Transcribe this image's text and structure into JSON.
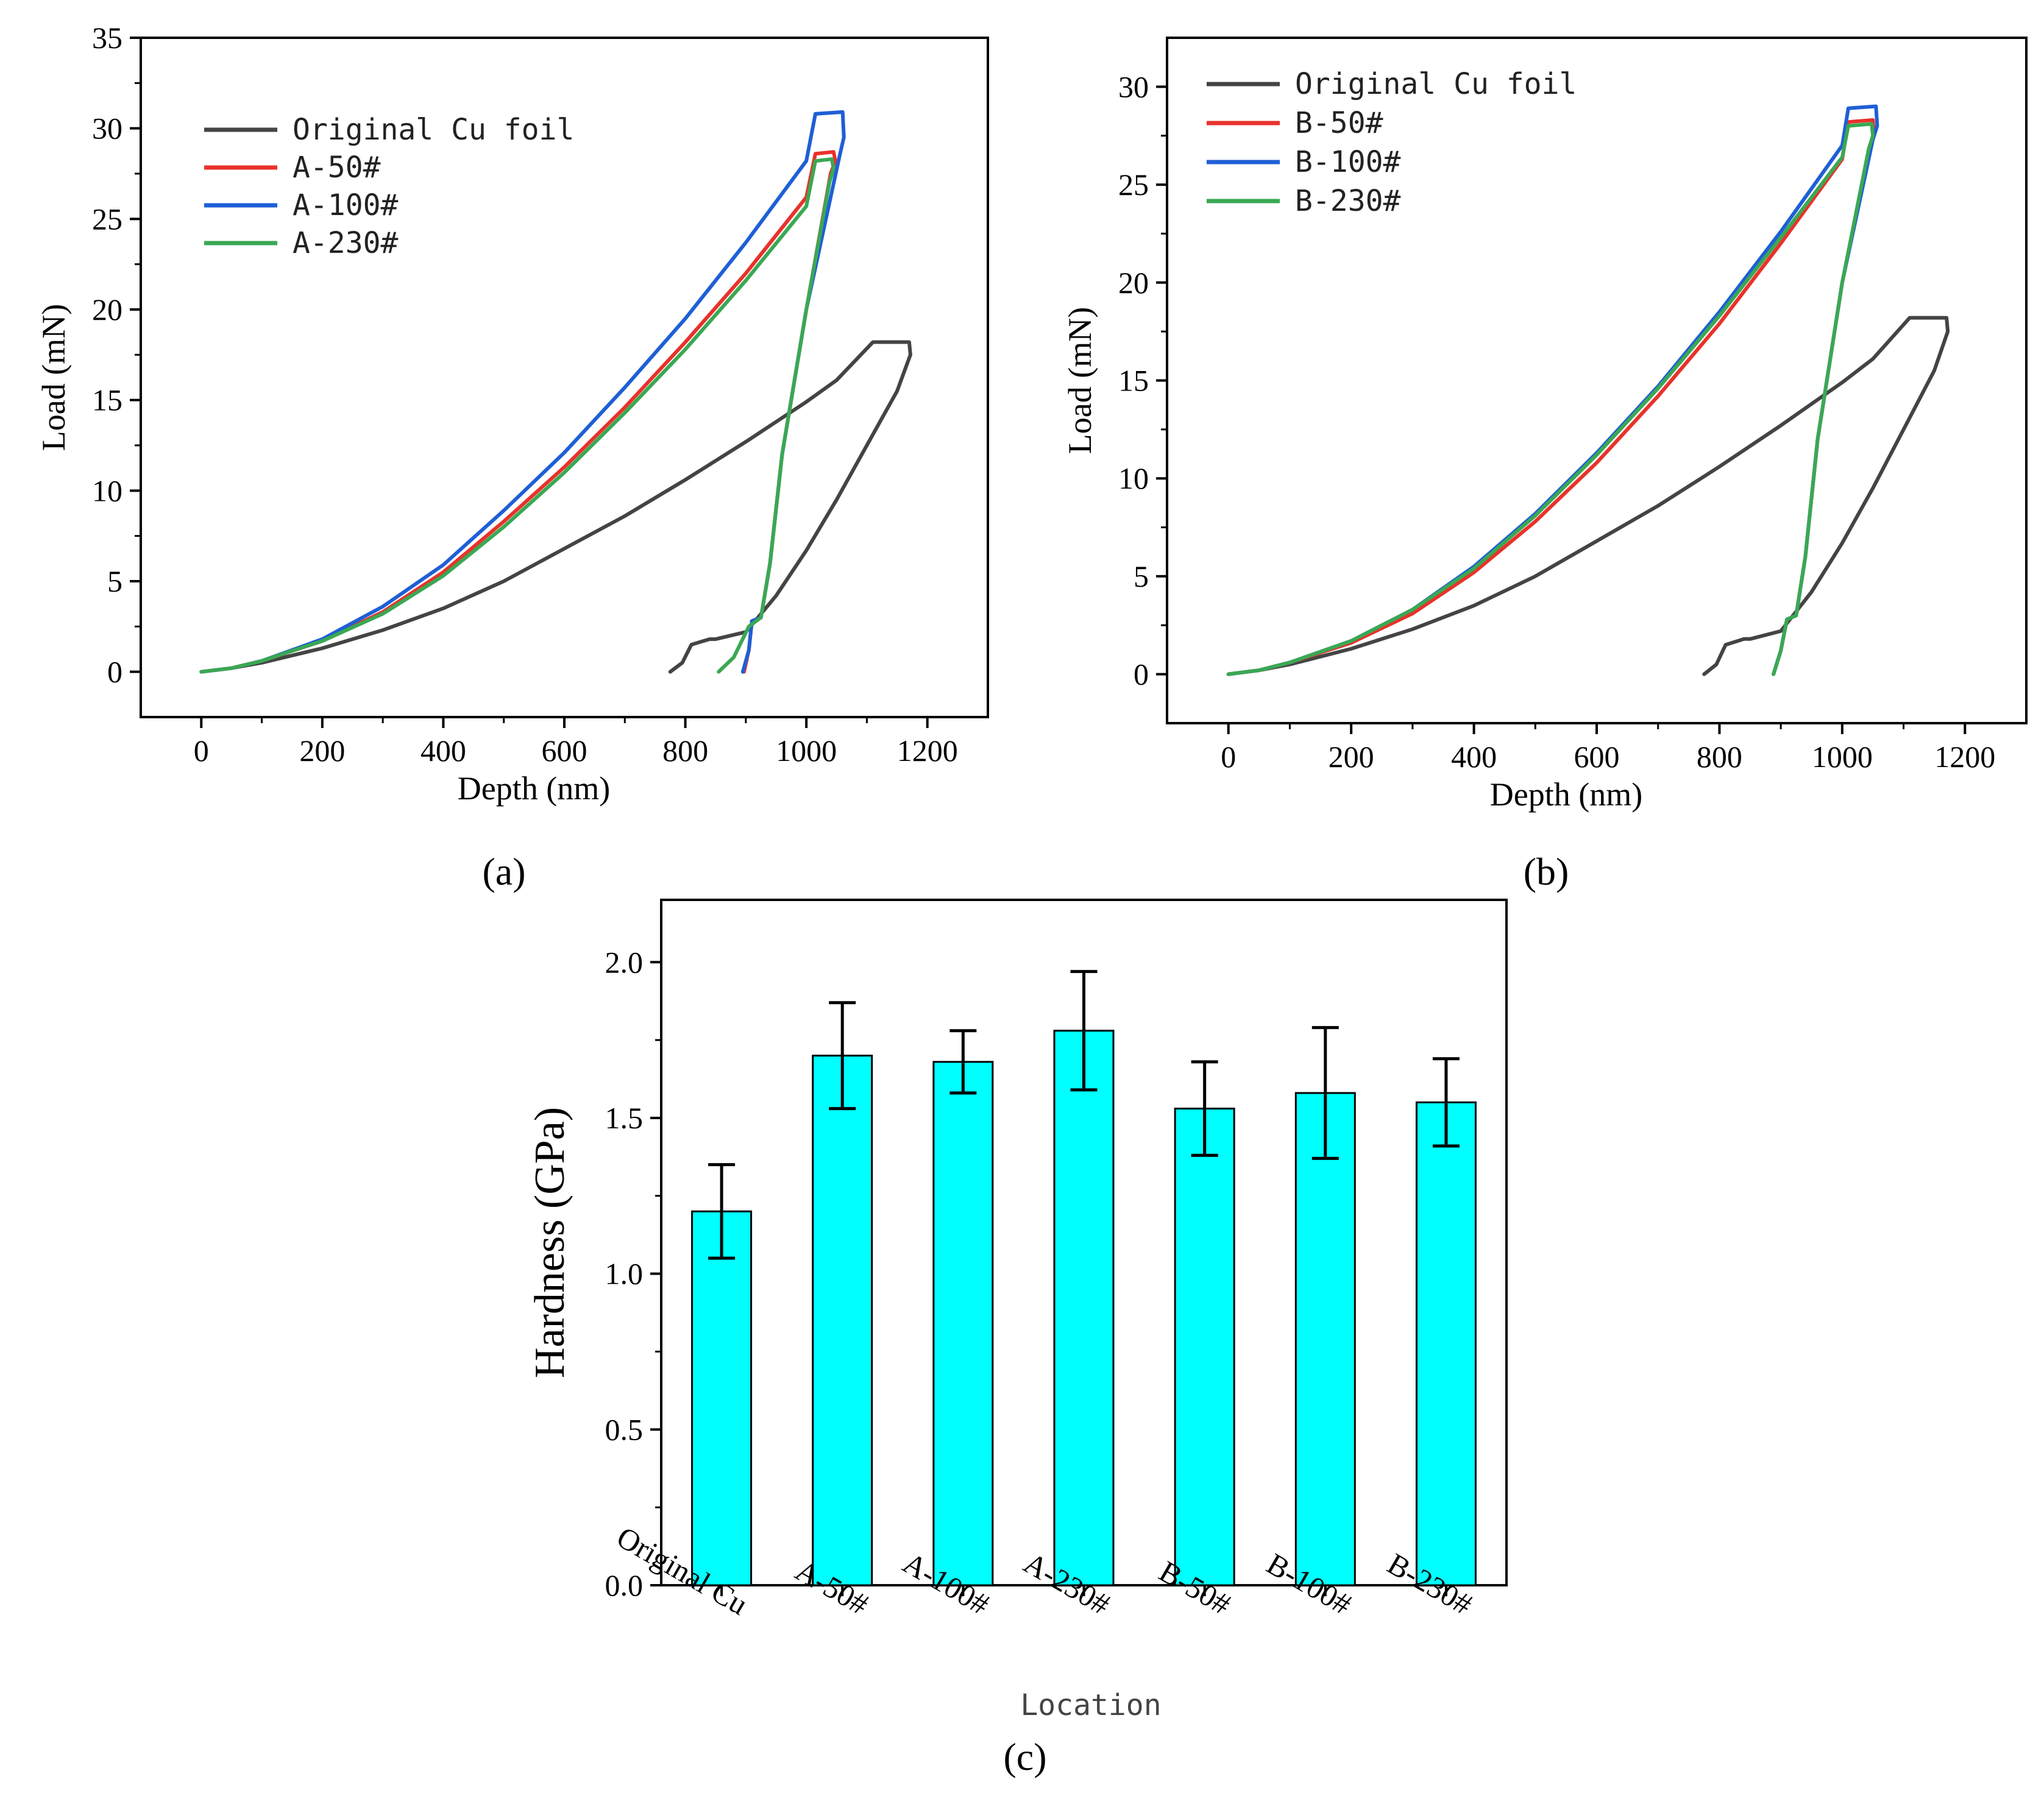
{
  "chart_data": [
    {
      "id": "a",
      "type": "line",
      "panel_label": "(a)",
      "xlabel": "Depth (nm)",
      "ylabel": "Load (mN)",
      "xlim": [
        -100,
        1300
      ],
      "ylim": [
        -2.5,
        35
      ],
      "xticks": [
        0,
        200,
        400,
        600,
        800,
        1000,
        1200
      ],
      "yticks": [
        0,
        5,
        10,
        15,
        20,
        25,
        30,
        35
      ],
      "legend_position": "top-left",
      "series": [
        {
          "name": "Original Cu foil",
          "color": "#444444",
          "x": [
            0,
            50,
            100,
            200,
            300,
            400,
            500,
            600,
            700,
            800,
            900,
            1000,
            1050,
            1110,
            1170,
            1172,
            1150,
            1100,
            1050,
            1000,
            950,
            900,
            850,
            840,
            810,
            795,
            775
          ],
          "y": [
            0,
            0.2,
            0.5,
            1.3,
            2.3,
            3.5,
            5.0,
            6.8,
            8.6,
            10.6,
            12.7,
            14.9,
            16.1,
            18.2,
            18.2,
            17.5,
            15.5,
            12.5,
            9.5,
            6.7,
            4.2,
            2.2,
            1.8,
            1.8,
            1.5,
            0.5,
            0
          ]
        },
        {
          "name": "A-50#",
          "color": "#e8322b",
          "x": [
            0,
            50,
            100,
            200,
            300,
            400,
            500,
            600,
            700,
            800,
            900,
            1000,
            1015,
            1045,
            1048,
            1040,
            1000,
            960,
            940,
            925,
            910,
            905,
            897
          ],
          "y": [
            0,
            0.2,
            0.6,
            1.7,
            3.3,
            5.5,
            8.3,
            11.3,
            14.6,
            18.2,
            22.0,
            26.2,
            28.6,
            28.7,
            28.2,
            27.5,
            20.0,
            12.0,
            6.0,
            3.0,
            2.8,
            1.2,
            0
          ]
        },
        {
          "name": "A-100#",
          "color": "#1e5fd6",
          "x": [
            0,
            50,
            100,
            200,
            300,
            400,
            500,
            600,
            700,
            800,
            900,
            1000,
            1015,
            1060,
            1062,
            1055,
            1000,
            960,
            940,
            925,
            910,
            905,
            895
          ],
          "y": [
            0,
            0.2,
            0.6,
            1.8,
            3.6,
            5.9,
            8.9,
            12.1,
            15.7,
            19.5,
            23.7,
            28.2,
            30.8,
            30.9,
            29.5,
            28.5,
            20.0,
            12.0,
            6.0,
            3.0,
            2.8,
            1.2,
            0
          ]
        },
        {
          "name": "A-230#",
          "color": "#3aa853",
          "x": [
            0,
            50,
            100,
            200,
            300,
            400,
            500,
            600,
            700,
            800,
            900,
            1000,
            1015,
            1042,
            1045,
            1038,
            1000,
            960,
            940,
            925,
            905,
            880,
            855
          ],
          "y": [
            0,
            0.2,
            0.6,
            1.7,
            3.2,
            5.3,
            8.0,
            11.0,
            14.3,
            17.8,
            21.6,
            25.7,
            28.2,
            28.3,
            27.8,
            27.0,
            20.0,
            12.0,
            6.0,
            3.0,
            2.5,
            0.8,
            0
          ]
        }
      ]
    },
    {
      "id": "b",
      "type": "line",
      "panel_label": "(b)",
      "xlabel": "Depth (nm)",
      "ylabel": "Load (mN)",
      "xlim": [
        -100,
        1300
      ],
      "ylim": [
        -2.5,
        32.5
      ],
      "xticks": [
        0,
        200,
        400,
        600,
        800,
        1000,
        1200
      ],
      "yticks": [
        0,
        5,
        10,
        15,
        20,
        25,
        30
      ],
      "legend_position": "top-left",
      "series": [
        {
          "name": "Original Cu foil",
          "color": "#444444",
          "x": [
            0,
            50,
            100,
            200,
            300,
            400,
            500,
            600,
            700,
            800,
            900,
            1000,
            1050,
            1110,
            1170,
            1172,
            1150,
            1100,
            1050,
            1000,
            950,
            900,
            850,
            840,
            810,
            795,
            775
          ],
          "y": [
            0,
            0.2,
            0.5,
            1.3,
            2.3,
            3.5,
            5.0,
            6.8,
            8.6,
            10.6,
            12.7,
            14.9,
            16.1,
            18.2,
            18.2,
            17.5,
            15.5,
            12.5,
            9.5,
            6.7,
            4.2,
            2.2,
            1.8,
            1.8,
            1.5,
            0.5,
            0
          ]
        },
        {
          "name": "B-50#",
          "color": "#e8322b",
          "x": [
            0,
            50,
            100,
            200,
            300,
            400,
            500,
            600,
            700,
            800,
            900,
            1000,
            1010,
            1050,
            1052,
            1045,
            1000,
            960,
            940,
            925,
            910,
            900,
            888
          ],
          "y": [
            0,
            0.2,
            0.6,
            1.6,
            3.1,
            5.2,
            7.8,
            10.8,
            14.2,
            17.9,
            22.0,
            26.3,
            28.2,
            28.3,
            27.5,
            27.0,
            20.0,
            12.0,
            6.0,
            3.0,
            2.8,
            1.2,
            0
          ]
        },
        {
          "name": "B-100#",
          "color": "#1e5fd6",
          "x": [
            0,
            50,
            100,
            200,
            300,
            400,
            500,
            600,
            700,
            800,
            900,
            1000,
            1010,
            1055,
            1057,
            1050,
            1000,
            960,
            940,
            925,
            910,
            900,
            888
          ],
          "y": [
            0,
            0.2,
            0.6,
            1.7,
            3.3,
            5.5,
            8.2,
            11.3,
            14.7,
            18.5,
            22.6,
            27.0,
            28.9,
            29.0,
            28.0,
            27.3,
            20.0,
            12.0,
            6.0,
            3.0,
            2.8,
            1.2,
            0
          ]
        },
        {
          "name": "B-230#",
          "color": "#3aa853",
          "x": [
            0,
            50,
            100,
            200,
            300,
            400,
            500,
            600,
            700,
            800,
            900,
            1000,
            1010,
            1048,
            1050,
            1043,
            1000,
            960,
            940,
            925,
            910,
            900,
            888
          ],
          "y": [
            0,
            0.2,
            0.6,
            1.7,
            3.3,
            5.4,
            8.1,
            11.2,
            14.6,
            18.3,
            22.3,
            26.4,
            28.0,
            28.1,
            27.5,
            26.8,
            20.0,
            12.0,
            6.0,
            3.0,
            2.8,
            1.2,
            0
          ]
        }
      ]
    },
    {
      "id": "c",
      "type": "bar",
      "panel_label": "(c)",
      "xlabel": "Location",
      "ylabel": "Hardness (GPa)",
      "ylim": [
        0,
        2.2
      ],
      "yticks": [
        "0.0",
        "0.5",
        "1.0",
        "1.5",
        "2.0"
      ],
      "bar_color": "#00ffff",
      "categories": [
        "Original Cu",
        "A-50#",
        "A-100#",
        "A-230#",
        "B-50#",
        "B-100#",
        "B-230#"
      ],
      "values": [
        1.2,
        1.7,
        1.68,
        1.78,
        1.53,
        1.58,
        1.55
      ],
      "errors": [
        0.15,
        0.17,
        0.1,
        0.19,
        0.15,
        0.21,
        0.14
      ]
    }
  ]
}
